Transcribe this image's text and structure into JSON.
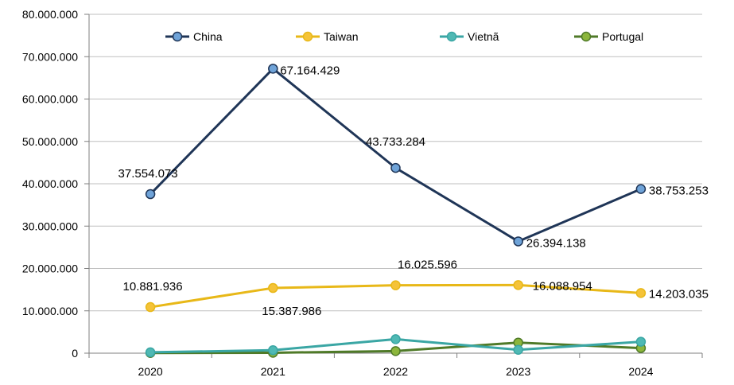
{
  "chart_data": {
    "type": "line",
    "categories": [
      "2020",
      "2021",
      "2022",
      "2023",
      "2024"
    ],
    "ylim": [
      0,
      80000000
    ],
    "yticks": [
      0,
      10000000,
      20000000,
      30000000,
      40000000,
      50000000,
      60000000,
      70000000,
      80000000
    ],
    "ytick_labels": [
      "0",
      "10.000.000",
      "20.000.000",
      "30.000.000",
      "40.000.000",
      "50.000.000",
      "60.000.000",
      "70.000.000",
      "80.000.000"
    ],
    "grid": true,
    "legend_position": "top",
    "series": [
      {
        "name": "China",
        "color": "#1f3557",
        "marker_color": "#6fa3d8",
        "values": [
          37554073,
          67164429,
          43733284,
          26394138,
          38753253
        ],
        "labels": [
          "37.554.073",
          "67.164.429",
          "43.733.284",
          "26.394.138",
          "38.753.253"
        ]
      },
      {
        "name": "Taiwan",
        "color": "#e8b818",
        "marker_color": "#f5c338",
        "values": [
          10881936,
          15387986,
          16025596,
          16088954,
          14203035
        ],
        "labels": [
          "10.881.936",
          "15.387.986",
          "16.025.596",
          "16.088.954",
          "14.203.035"
        ]
      },
      {
        "name": "Vietnã",
        "color": "#3aa6a4",
        "marker_color": "#4fb9b4",
        "values": [
          200000,
          700000,
          3300000,
          800000,
          2700000
        ],
        "labels": []
      },
      {
        "name": "Portugal",
        "color": "#4f7a28",
        "marker_color": "#8cb63c",
        "values": [
          50000,
          100000,
          500000,
          2500000,
          1200000
        ],
        "labels": []
      }
    ]
  }
}
